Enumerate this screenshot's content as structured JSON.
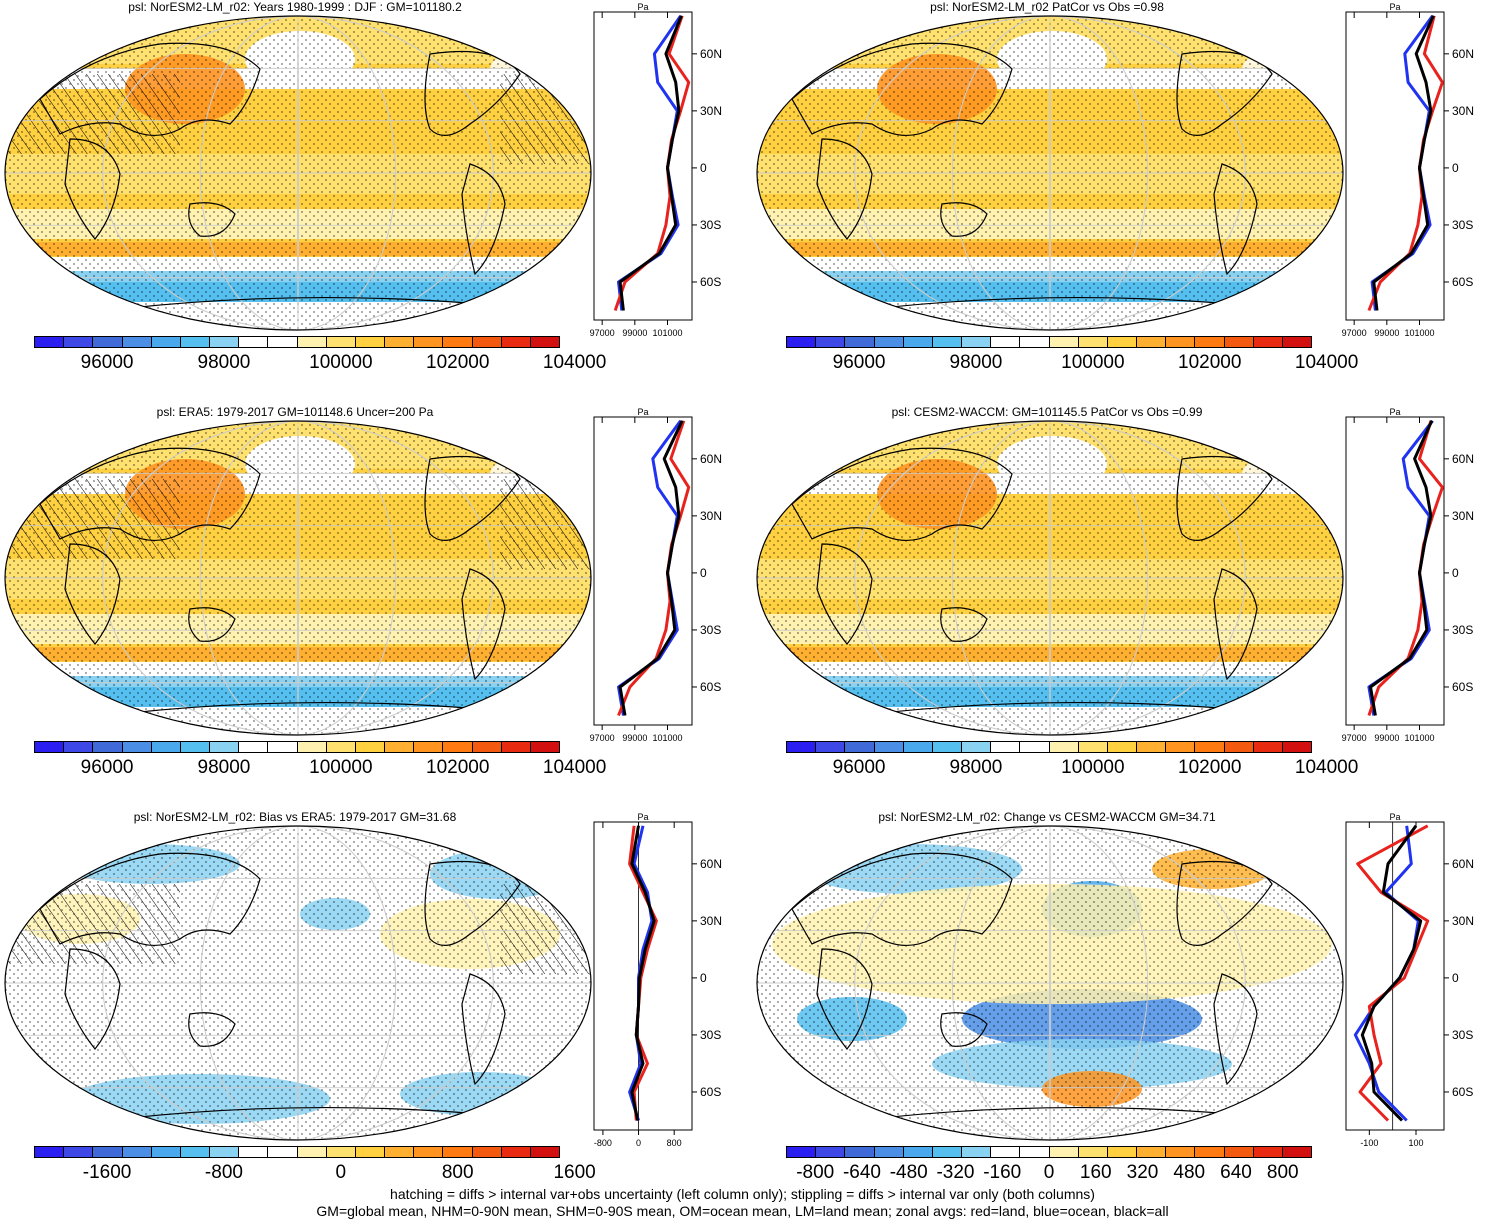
{
  "colors": {
    "scale": [
      "#2a1ef0",
      "#3d48e6",
      "#3f6ad8",
      "#4a8ee6",
      "#4aa8ec",
      "#55c0f0",
      "#8ad2f2",
      "#ffffff",
      "#ffffff",
      "#fff2b0",
      "#ffe170",
      "#ffd040",
      "#ffb030",
      "#ff9420",
      "#ff7a10",
      "#f35a10",
      "#e82a10",
      "#d21010"
    ],
    "land": "#e8231e",
    "ocean": "#1f33f0",
    "all": "#000000"
  },
  "panels": [
    {
      "id": "p1",
      "title": "psl: NorESM2-LM_r02: Years 1980-1999 : DJF : GM=101180.2",
      "cbar_labels": [
        "96000",
        "98000",
        "100000",
        "102000",
        "104000"
      ],
      "zonal_x_ticks": [
        "97000",
        "99000",
        "101000"
      ],
      "zonal_units": "Pa"
    },
    {
      "id": "p2",
      "title": "psl: NorESM2-LM_r02 PatCor vs Obs =0.98",
      "cbar_labels": [
        "96000",
        "98000",
        "100000",
        "102000",
        "104000"
      ],
      "zonal_x_ticks": [
        "97000",
        "99000",
        "101000"
      ],
      "zonal_units": "Pa"
    },
    {
      "id": "p3",
      "title": "psl: ERA5: 1979-2017 GM=101148.6 Uncer=200 Pa",
      "cbar_labels": [
        "96000",
        "98000",
        "100000",
        "102000",
        "104000"
      ],
      "zonal_x_ticks": [
        "97000",
        "99000",
        "101000"
      ],
      "zonal_units": "Pa"
    },
    {
      "id": "p4",
      "title": "psl: CESM2-WACCM: GM=101145.5 PatCor vs Obs =0.99",
      "cbar_labels": [
        "96000",
        "98000",
        "100000",
        "102000",
        "104000"
      ],
      "zonal_x_ticks": [
        "97000",
        "99000",
        "101000"
      ],
      "zonal_units": "Pa"
    },
    {
      "id": "p5",
      "title": "psl: NorESM2-LM_r02: Bias vs ERA5: 1979-2017 GM=31.68",
      "cbar_labels": [
        "-1600",
        "-800",
        "0",
        "800",
        "1600"
      ],
      "zonal_x_ticks": [
        "-800",
        "0",
        "800"
      ],
      "zonal_units": "Pa"
    },
    {
      "id": "p6",
      "title": "psl: NorESM2-LM_r02: Change vs CESM2-WACCM GM=34.71",
      "cbar_labels": [
        "-800",
        "-640",
        "-480",
        "-320",
        "-160",
        "0",
        "160",
        "320",
        "480",
        "640",
        "800"
      ],
      "zonal_x_ticks": [
        "-100",
        "100"
      ],
      "zonal_units": "Pa"
    }
  ],
  "lat_labels": [
    "60N",
    "30N",
    "0",
    "30S",
    "60S"
  ],
  "chart_data": [
    {
      "type": "heatmap",
      "title": "psl: NorESM2-LM_r02: Years 1980-1999 : DJF : GM=101180.2",
      "colorbar_range": [
        95000,
        105000
      ],
      "zonal_means": {
        "lat": [
          80,
          60,
          45,
          30,
          15,
          0,
          -15,
          -30,
          -45,
          -60,
          -75
        ],
        "land": [
          101900,
          101100,
          102300,
          101800,
          101250,
          101000,
          101150,
          100900,
          100400,
          98400,
          97800
        ],
        "ocean": [
          101800,
          100200,
          100400,
          101600,
          101300,
          101000,
          101300,
          101650,
          100600,
          98000,
          98200
        ],
        "all": [
          101850,
          100900,
          101500,
          101700,
          101300,
          101000,
          101250,
          101500,
          100500,
          98100,
          98300
        ]
      }
    },
    {
      "type": "heatmap",
      "title": "psl: NorESM2-LM_r02 PatCor vs Obs =0.98",
      "colorbar_range": [
        95000,
        105000
      ],
      "zonal_means": {
        "lat": [
          80,
          60,
          45,
          30,
          15,
          0,
          -15,
          -30,
          -45,
          -60,
          -75
        ],
        "land": [
          101900,
          101300,
          102400,
          101800,
          101250,
          101000,
          101150,
          100900,
          100400,
          98600,
          97900
        ],
        "ocean": [
          101800,
          100100,
          100300,
          101600,
          101300,
          101000,
          101300,
          101650,
          100600,
          98100,
          98300
        ],
        "all": [
          101850,
          100800,
          101400,
          101700,
          101300,
          101000,
          101250,
          101500,
          100500,
          98200,
          98400
        ]
      }
    },
    {
      "type": "heatmap",
      "title": "psl: ERA5: 1979-2017 GM=101148.6 Uncer=200 Pa",
      "colorbar_range": [
        95000,
        105000
      ],
      "zonal_means": {
        "lat": [
          80,
          60,
          45,
          30,
          15,
          0,
          -15,
          -30,
          -45,
          -60,
          -75
        ],
        "land": [
          102000,
          101200,
          102300,
          101800,
          101250,
          101000,
          101150,
          100900,
          100300,
          98700,
          98000
        ],
        "ocean": [
          101800,
          100100,
          100400,
          101600,
          101300,
          101000,
          101300,
          101600,
          100500,
          98000,
          98300
        ],
        "all": [
          101900,
          100800,
          101500,
          101700,
          101300,
          101000,
          101250,
          101450,
          100400,
          98100,
          98400
        ]
      }
    },
    {
      "type": "heatmap",
      "title": "psl: CESM2-WACCM: GM=101145.5 PatCor vs Obs =0.99",
      "colorbar_range": [
        95000,
        105000
      ],
      "zonal_means": {
        "lat": [
          80,
          60,
          45,
          30,
          15,
          0,
          -15,
          -30,
          -45,
          -60,
          -75
        ],
        "land": [
          101700,
          101000,
          102400,
          101800,
          101250,
          101000,
          101150,
          100900,
          100300,
          98500,
          97900
        ],
        "ocean": [
          101800,
          100000,
          100300,
          101600,
          101300,
          101000,
          101300,
          101600,
          100500,
          97900,
          98200
        ],
        "all": [
          101750,
          100700,
          101400,
          101700,
          101300,
          101000,
          101250,
          101450,
          100400,
          98000,
          98300
        ]
      }
    },
    {
      "type": "heatmap",
      "title": "psl: NorESM2-LM_r02: Bias vs ERA5: 1979-2017 GM=31.68",
      "colorbar_range": [
        -2000,
        2000
      ],
      "zonal_means": {
        "lat": [
          80,
          60,
          45,
          30,
          15,
          0,
          -15,
          -30,
          -45,
          -60,
          -75
        ],
        "land": [
          -100,
          -200,
          100,
          400,
          200,
          50,
          0,
          -50,
          200,
          -100,
          -50
        ],
        "ocean": [
          100,
          -100,
          200,
          300,
          100,
          0,
          0,
          -50,
          50,
          -200,
          0
        ],
        "all": [
          0,
          -150,
          150,
          350,
          150,
          20,
          0,
          -50,
          100,
          -150,
          -20
        ]
      }
    },
    {
      "type": "heatmap",
      "title": "psl: NorESM2-LM_r02: Change vs CESM2-WACCM GM=34.71",
      "colorbar_range": [
        -880,
        880
      ],
      "zonal_means": {
        "lat": [
          80,
          60,
          45,
          30,
          15,
          0,
          -15,
          -30,
          -45,
          -60,
          -75
        ],
        "land": [
          150,
          -150,
          -50,
          150,
          100,
          50,
          -100,
          -80,
          -50,
          -140,
          -20
        ],
        "ocean": [
          60,
          80,
          -30,
          110,
          90,
          30,
          -80,
          -160,
          -100,
          -60,
          60
        ],
        "all": [
          100,
          -20,
          -40,
          120,
          90,
          30,
          -80,
          -130,
          -90,
          -80,
          40
        ]
      }
    }
  ],
  "footnote": {
    "line1": "hatching = diffs > internal var+obs uncertainty (left column only); stippling = diffs > internal var only (both columns)",
    "line2": "GM=global mean, NHM=0-90N mean, SHM=0-90S mean, OM=ocean mean, LM=land mean; zonal avgs: red=land, blue=ocean, black=all"
  }
}
